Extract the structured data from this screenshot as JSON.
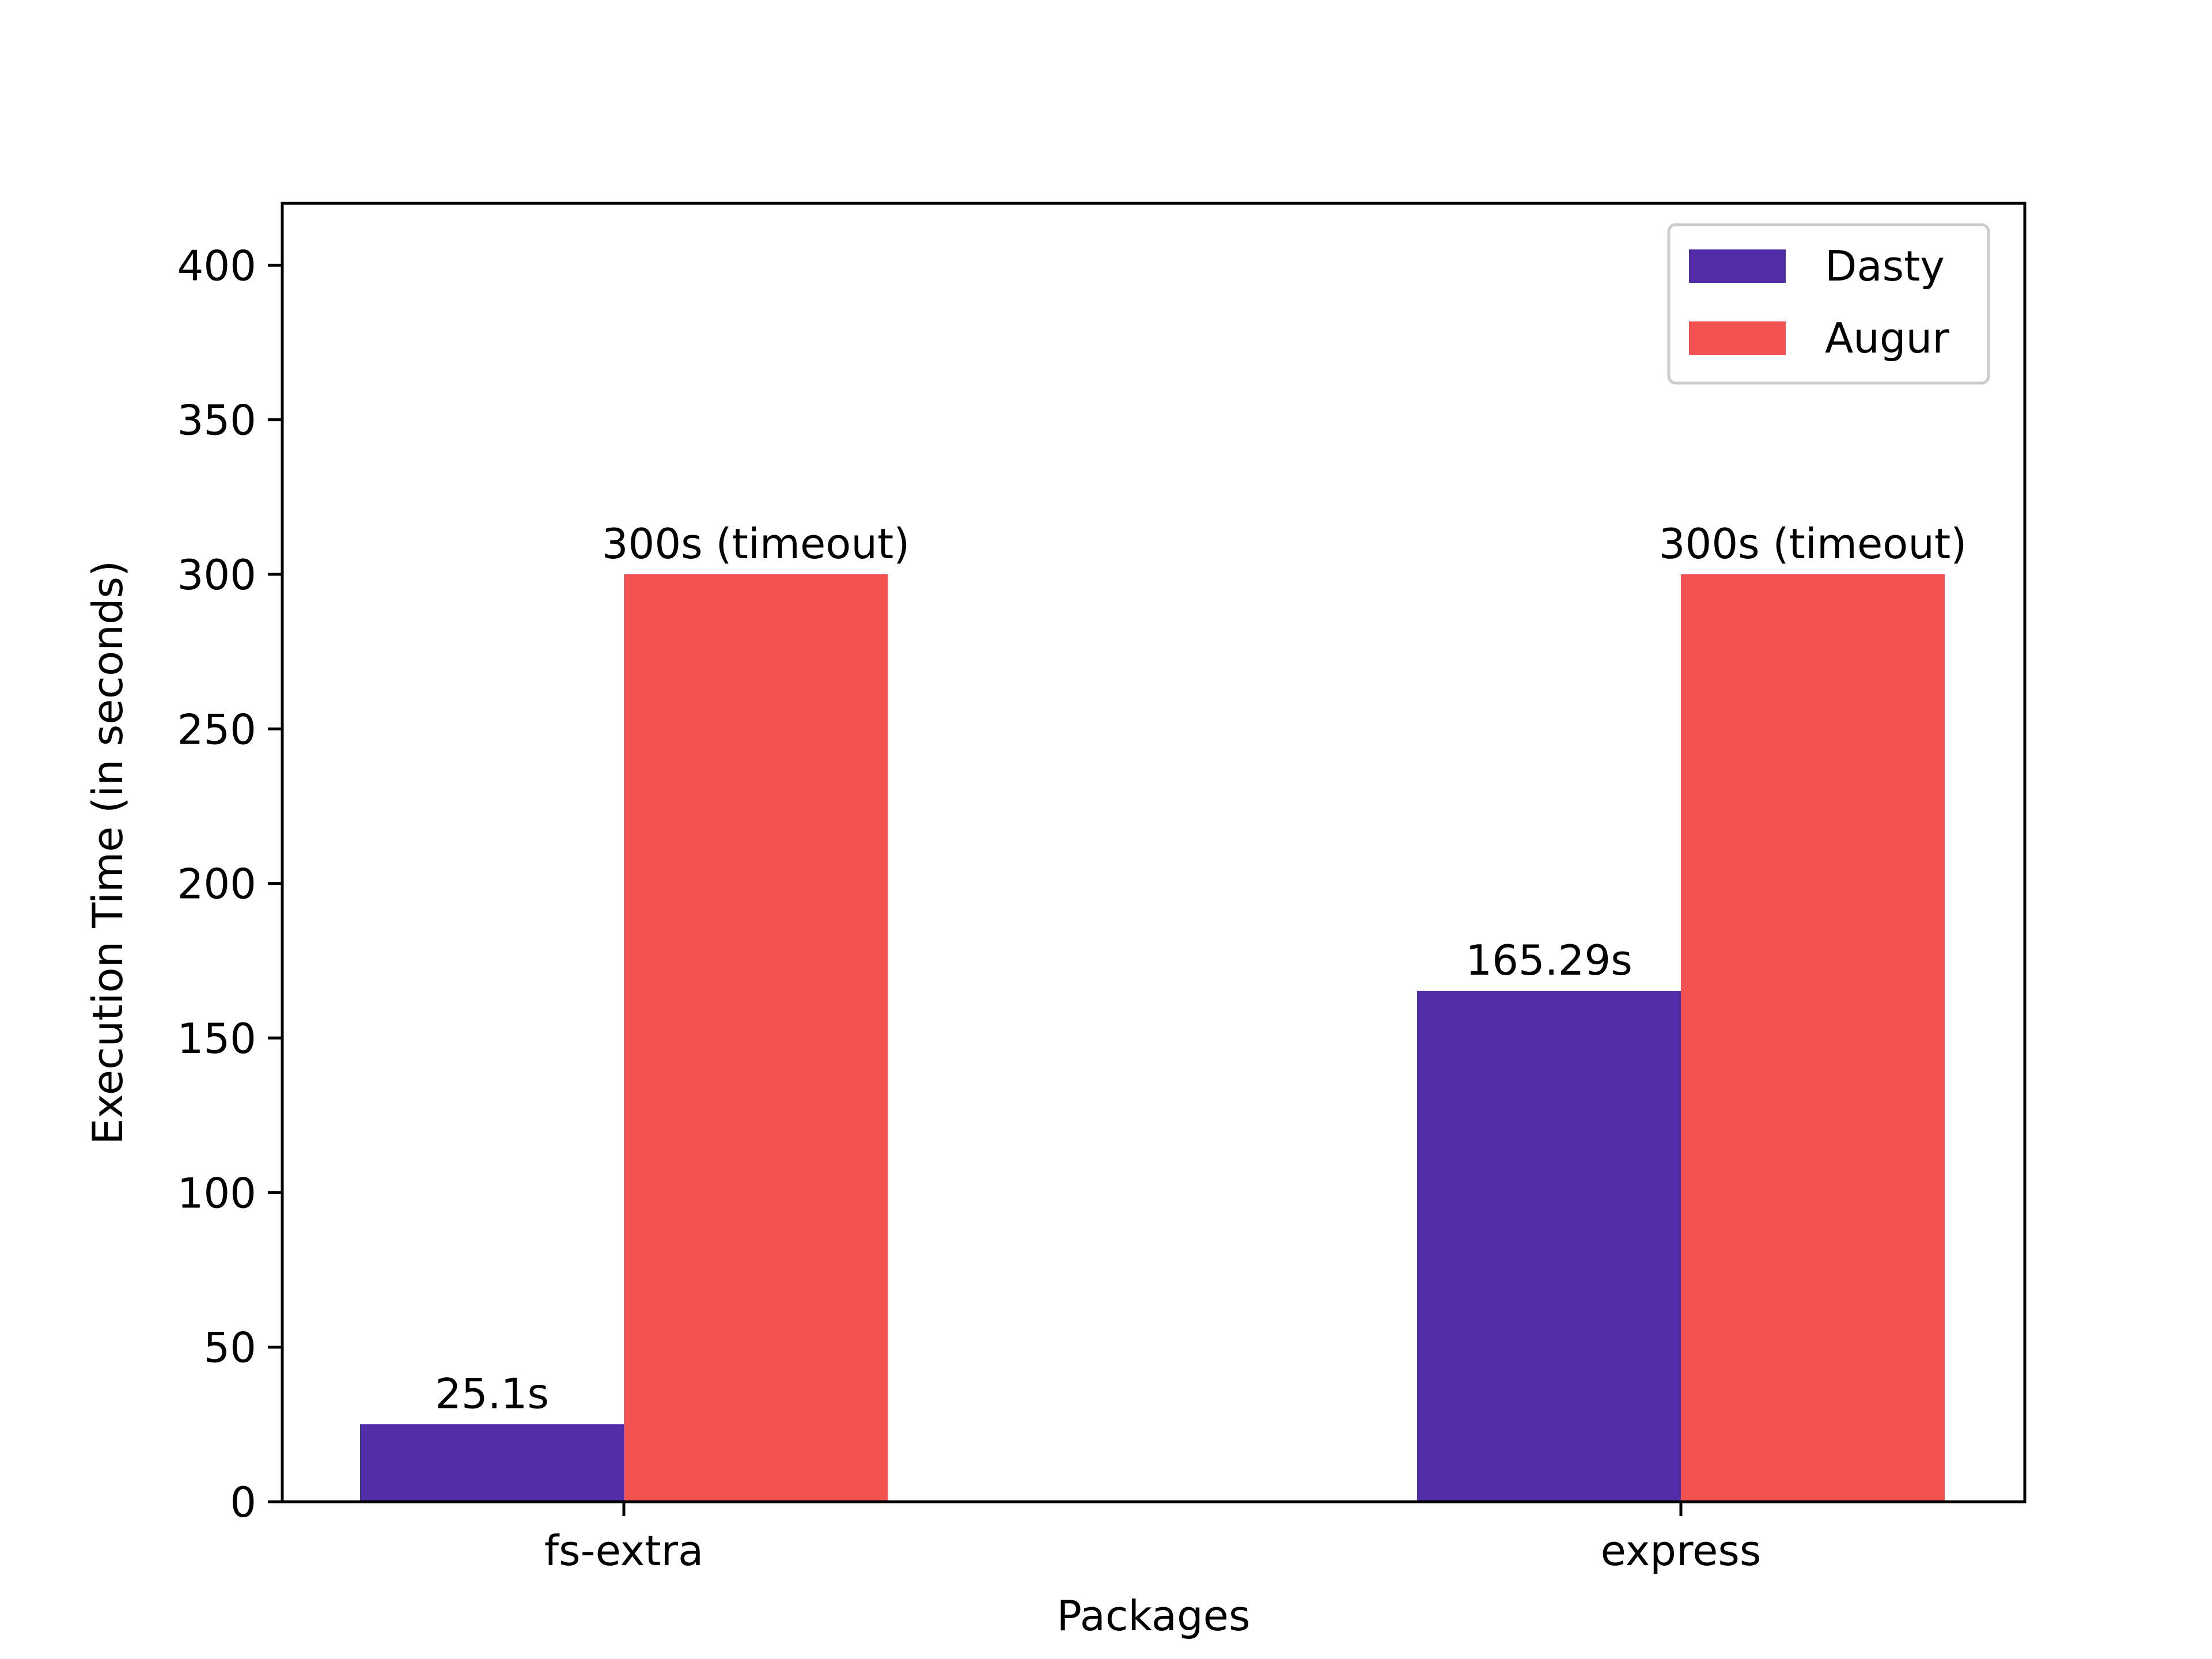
{
  "chart_data": {
    "type": "bar",
    "title": "",
    "xlabel": "Packages",
    "ylabel": "Execution Time (in seconds)",
    "categories": [
      "fs-extra",
      "express"
    ],
    "series": [
      {
        "name": "Dasty",
        "values": [
          25.1,
          165.29
        ],
        "color": "#512DA8",
        "labels": [
          "25.1s",
          "165.29s"
        ]
      },
      {
        "name": "Augur",
        "values": [
          300,
          300
        ],
        "color": "#F25252",
        "labels": [
          "300s (timeout)",
          "300s (timeout)"
        ]
      }
    ],
    "ylim": [
      0,
      420
    ],
    "yticks": [
      0,
      50,
      100,
      150,
      200,
      250,
      300,
      350,
      400
    ],
    "ytick_labels": [
      "0",
      "50",
      "100",
      "150",
      "200",
      "250",
      "300",
      "350",
      "400"
    ],
    "grid": false,
    "legend_position": "top-right"
  }
}
